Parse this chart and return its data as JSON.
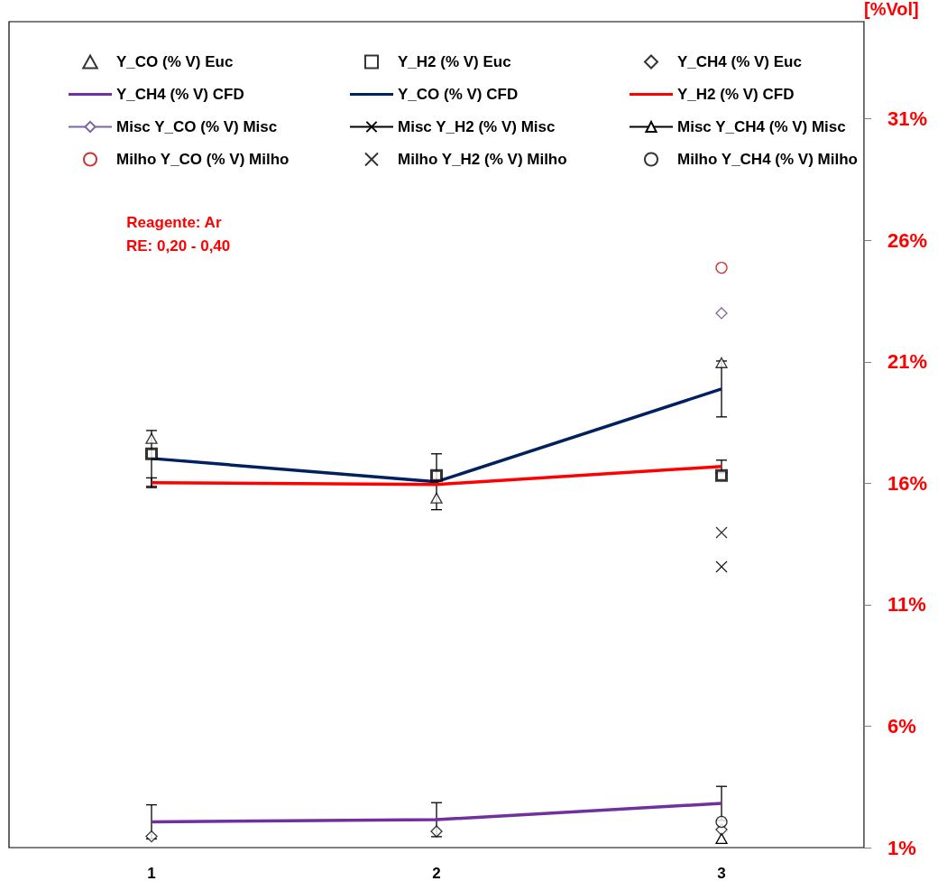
{
  "chart_data": {
    "type": "scatter",
    "ylabel": "[%Vol]",
    "categories": [
      "1",
      "2",
      "3"
    ],
    "ylim": [
      1,
      35
    ],
    "yticks": [
      {
        "value": 1,
        "label": "1%"
      },
      {
        "value": 6,
        "label": "6%"
      },
      {
        "value": 11,
        "label": "11%"
      },
      {
        "value": 16,
        "label": "16%"
      },
      {
        "value": 21,
        "label": "21%"
      },
      {
        "value": 26,
        "label": "26%"
      },
      {
        "value": 31,
        "label": "31%"
      }
    ],
    "grid": false,
    "legend": "top",
    "annotations": [
      "Reagente: Ar",
      "RE: 0,20 - 0,40"
    ],
    "series": [
      {
        "name": "Y_CO (% V) Euc",
        "marker": "triangle",
        "color": "#000000",
        "values": [
          17.84,
          15.39,
          20.96
        ]
      },
      {
        "name": "Y_H2 (% V) Euc",
        "marker": "square",
        "color": "#000000",
        "values": [
          17.21,
          16.32,
          16.32
        ]
      },
      {
        "name": "Y_CH4 (% V) Euc",
        "marker": "diamond",
        "color": "#000000",
        "values": [
          1.46,
          1.67,
          1.74
        ]
      },
      {
        "name": "Y_CH4 (% V) CFD",
        "type": "line",
        "marker": "none",
        "color": "#7030a0",
        "values": [
          2.06,
          2.15,
          2.82
        ],
        "errors": [
          0.7,
          0.7,
          0.7
        ]
      },
      {
        "name": "Y_CO (% V) CFD",
        "type": "line",
        "marker": "none",
        "color": "#002060",
        "values": [
          17.02,
          16.06,
          19.88
        ],
        "errors": [
          1.15,
          1.15,
          1.15
        ]
      },
      {
        "name": "Y_H2 (% V) CFD",
        "type": "line",
        "marker": "none",
        "color": "#ff0000",
        "values": [
          16.02,
          15.95,
          16.69
        ],
        "errors": [
          0.2,
          null,
          0.26
        ]
      },
      {
        "name": "Misc Y_CO (% V) Misc",
        "type": "line",
        "marker": "diamond",
        "color": "#8064a2",
        "values": [
          null,
          null,
          23.0
        ]
      },
      {
        "name": "Misc Y_H2 (% V) Misc",
        "type": "line",
        "marker": "cross",
        "color": "#000000",
        "values": [
          null,
          null,
          12.56
        ]
      },
      {
        "name": "Misc Y_CH4 (% V) Misc",
        "type": "line",
        "marker": "triangle",
        "color": "#000000",
        "values": [
          null,
          null,
          1.37
        ]
      },
      {
        "name": "Milho Y_CO (% V) Milho",
        "marker": "circle",
        "color": "#c00000",
        "values": [
          null,
          null,
          24.87
        ]
      },
      {
        "name": "Milho Y_H2 (% V) Milho",
        "marker": "cross",
        "color": "#000000",
        "values": [
          null,
          null,
          13.97
        ]
      },
      {
        "name": "Milho Y_CH4 (% V) Milho",
        "marker": "circle",
        "color": "#000000",
        "values": [
          null,
          null,
          2.06
        ]
      }
    ]
  }
}
